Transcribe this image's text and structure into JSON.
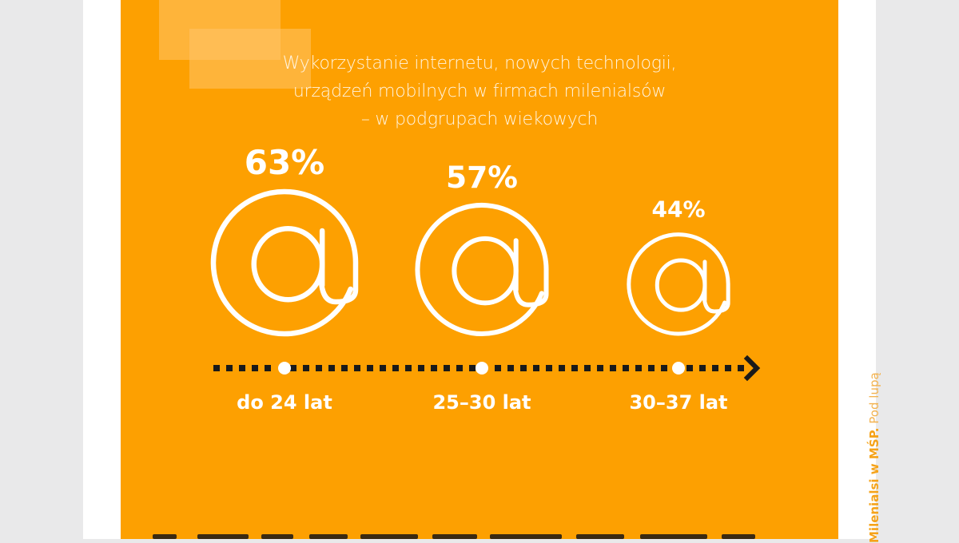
{
  "colors": {
    "panel": "#fda001",
    "foreground": "#ffffff",
    "axis_dots": "#1a1a1a",
    "accent_text": "#f5a31a"
  },
  "chart_data": {
    "type": "pictogram",
    "title_lines": [
      "Wykorzystanie internetu, nowych technologii,",
      "urządzeń mobilnych w firmach milenialsów",
      "– w podgrupach wiekowych"
    ],
    "categories": [
      "do 24 lat",
      "25–30 lat",
      "30–37 lat"
    ],
    "values": [
      63,
      57,
      44
    ],
    "value_labels": [
      "63%",
      "57%",
      "44%"
    ],
    "unit": "%",
    "icon": "at-sign-icon",
    "axis": "dotted-arrow"
  },
  "sidebar_text": {
    "bold": "Milenialsi w MŚP.",
    "light": "Pod lupą"
  }
}
